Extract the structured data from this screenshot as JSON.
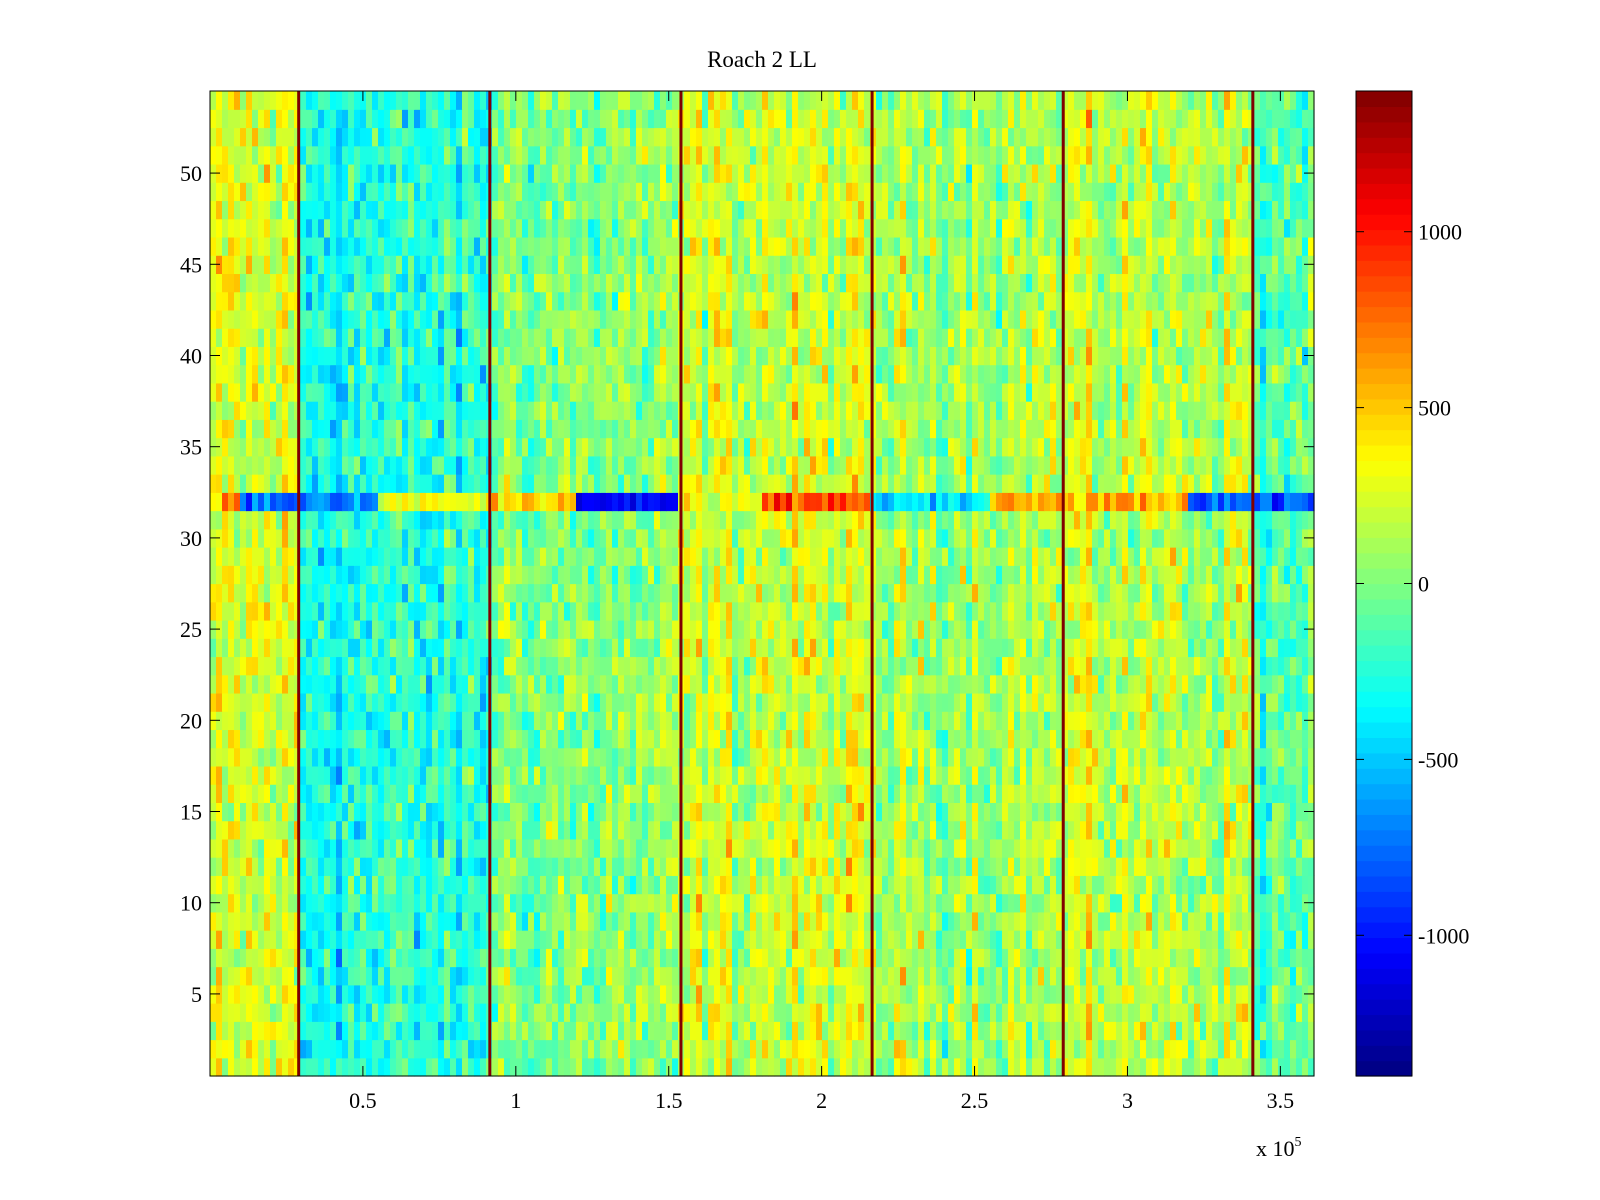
{
  "chart_data": {
    "type": "heatmap",
    "title": "Roach 2 LL",
    "xlabel": "",
    "ylabel": "",
    "x_exponent_label": "x 10",
    "x_exponent_power": "5",
    "xlim": [
      0,
      3.61
    ],
    "ylim": [
      0.5,
      54.5
    ],
    "x_ticks": [
      0.5,
      1,
      1.5,
      2,
      2.5,
      3,
      3.5
    ],
    "x_tick_labels": [
      "0.5",
      "1",
      "1.5",
      "2",
      "2.5",
      "3",
      "3.5"
    ],
    "y_ticks": [
      5,
      10,
      15,
      20,
      25,
      30,
      35,
      40,
      45,
      50
    ],
    "y_tick_labels": [
      "5",
      "10",
      "15",
      "20",
      "25",
      "30",
      "35",
      "40",
      "45",
      "50"
    ],
    "rows": 54,
    "colorbar": {
      "colormap": "jet",
      "clim": [
        -1400,
        1400
      ],
      "ticks": [
        -1000,
        -500,
        0,
        500,
        1000
      ],
      "tick_labels": [
        "-1000",
        "-500",
        "0",
        "500",
        "1000"
      ]
    },
    "background_level": 0,
    "noise_level": 320,
    "vertical_lines": [
      {
        "x": 0.29,
        "value": 1400
      },
      {
        "x": 0.915,
        "value": 1400
      },
      {
        "x": 1.54,
        "value": 1400
      },
      {
        "x": 2.165,
        "value": 1400
      },
      {
        "x": 2.79,
        "value": 1400
      },
      {
        "x": 3.41,
        "value": 1400
      }
    ],
    "row_32_segments": [
      {
        "x_start": 0.0,
        "x_end": 0.1,
        "value": 600
      },
      {
        "x_start": 0.1,
        "x_end": 0.55,
        "value": -750
      },
      {
        "x_start": 0.55,
        "x_end": 0.915,
        "value": 300
      },
      {
        "x_start": 0.915,
        "x_end": 1.2,
        "value": 450
      },
      {
        "x_start": 1.2,
        "x_end": 1.54,
        "value": -1050
      },
      {
        "x_start": 1.54,
        "x_end": 1.8,
        "value": 200
      },
      {
        "x_start": 1.8,
        "x_end": 2.165,
        "value": 850
      },
      {
        "x_start": 2.165,
        "x_end": 2.55,
        "value": -450
      },
      {
        "x_start": 2.55,
        "x_end": 3.2,
        "value": 550
      },
      {
        "x_start": 3.2,
        "x_end": 3.61,
        "value": -850
      }
    ],
    "regional_bias": [
      {
        "x_start": 0.0,
        "x_end": 0.29,
        "value": 220
      },
      {
        "x_start": 0.29,
        "x_end": 0.915,
        "value": -260
      },
      {
        "x_start": 0.915,
        "x_end": 1.54,
        "value": 20
      },
      {
        "x_start": 1.54,
        "x_end": 2.165,
        "value": 200
      },
      {
        "x_start": 2.165,
        "x_end": 2.79,
        "value": 120
      },
      {
        "x_start": 2.79,
        "x_end": 3.41,
        "value": 180
      },
      {
        "x_start": 3.41,
        "x_end": 3.61,
        "value": -120
      }
    ]
  }
}
